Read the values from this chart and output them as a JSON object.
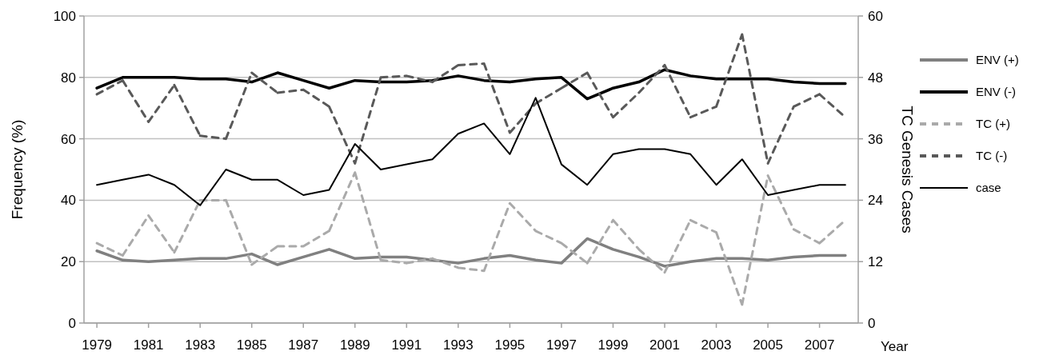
{
  "chart_data": {
    "type": "line",
    "xlabel": "Year",
    "ylabel": "Frequency (%)",
    "y2label": "TC Genesis Cases",
    "x": [
      1979,
      1980,
      1981,
      1982,
      1983,
      1984,
      1985,
      1986,
      1987,
      1988,
      1989,
      1990,
      1991,
      1992,
      1993,
      1994,
      1995,
      1996,
      1997,
      1998,
      1999,
      2000,
      2001,
      2002,
      2003,
      2004,
      2005,
      2006,
      2007,
      2008
    ],
    "xlim": [
      1978.5,
      2008.5
    ],
    "xticks": [
      1979,
      1981,
      1983,
      1985,
      1987,
      1989,
      1991,
      1993,
      1995,
      1997,
      1999,
      2001,
      2003,
      2005,
      2007
    ],
    "ylim": [
      0,
      100
    ],
    "yticks": [
      0,
      20,
      40,
      60,
      80,
      100
    ],
    "y2lim": [
      0,
      60
    ],
    "y2ticks": [
      0,
      12,
      24,
      36,
      48,
      60
    ],
    "grid": "y",
    "legend": "right",
    "series": [
      {
        "name": "ENV (+)",
        "color": "#808080",
        "line_style": "solid",
        "values": [
          23.5,
          20.5,
          20,
          20.5,
          21,
          21,
          22.5,
          19,
          21.5,
          24,
          21,
          21.5,
          21.5,
          20.5,
          19.5,
          21,
          22,
          20.5,
          19.5,
          27.5,
          24,
          21.5,
          18.5,
          20,
          21,
          21,
          20.5,
          21.5,
          22,
          22
        ]
      },
      {
        "name": "ENV (-)",
        "color": "#000000",
        "line_style": "solid",
        "values": [
          76.5,
          80,
          80,
          80,
          79.5,
          79.5,
          78.5,
          81.5,
          79,
          76.5,
          79,
          78.5,
          78.5,
          79,
          80.5,
          79,
          78.5,
          79.5,
          80,
          73,
          76.5,
          78.5,
          82.5,
          80.5,
          79.5,
          79.5,
          79.5,
          78.5,
          78,
          78
        ]
      },
      {
        "name": "TC (+)",
        "color": "#aaaaaa",
        "line_style": "dashed",
        "values": [
          26,
          22,
          35,
          23,
          40,
          40,
          19,
          25,
          25,
          30,
          49,
          20.5,
          19.5,
          21,
          18,
          17,
          39,
          30,
          26,
          19.5,
          33.5,
          24,
          16.5,
          33.5,
          29.5,
          6,
          48,
          30.5,
          26,
          33.5
        ]
      },
      {
        "name": "TC (-)",
        "color": "#595959",
        "line_style": "dashed",
        "values": [
          74.5,
          79,
          65.5,
          77.5,
          61,
          60,
          81.5,
          75,
          76,
          70.5,
          52,
          80,
          80.5,
          78.5,
          84,
          84.5,
          62,
          71.5,
          76.5,
          81.5,
          67,
          75,
          84,
          67,
          70.5,
          94,
          52,
          70.5,
          74.5,
          67
        ]
      },
      {
        "name": "case",
        "color": "#000000",
        "line_style": "solid",
        "axis": "y2",
        "values": [
          27,
          28,
          29,
          27,
          23,
          30,
          28,
          28,
          25,
          26,
          35,
          30,
          31,
          32,
          37,
          39,
          33,
          44,
          31,
          27,
          33,
          34,
          34,
          33,
          27,
          32,
          25,
          26,
          27,
          27
        ]
      }
    ]
  }
}
